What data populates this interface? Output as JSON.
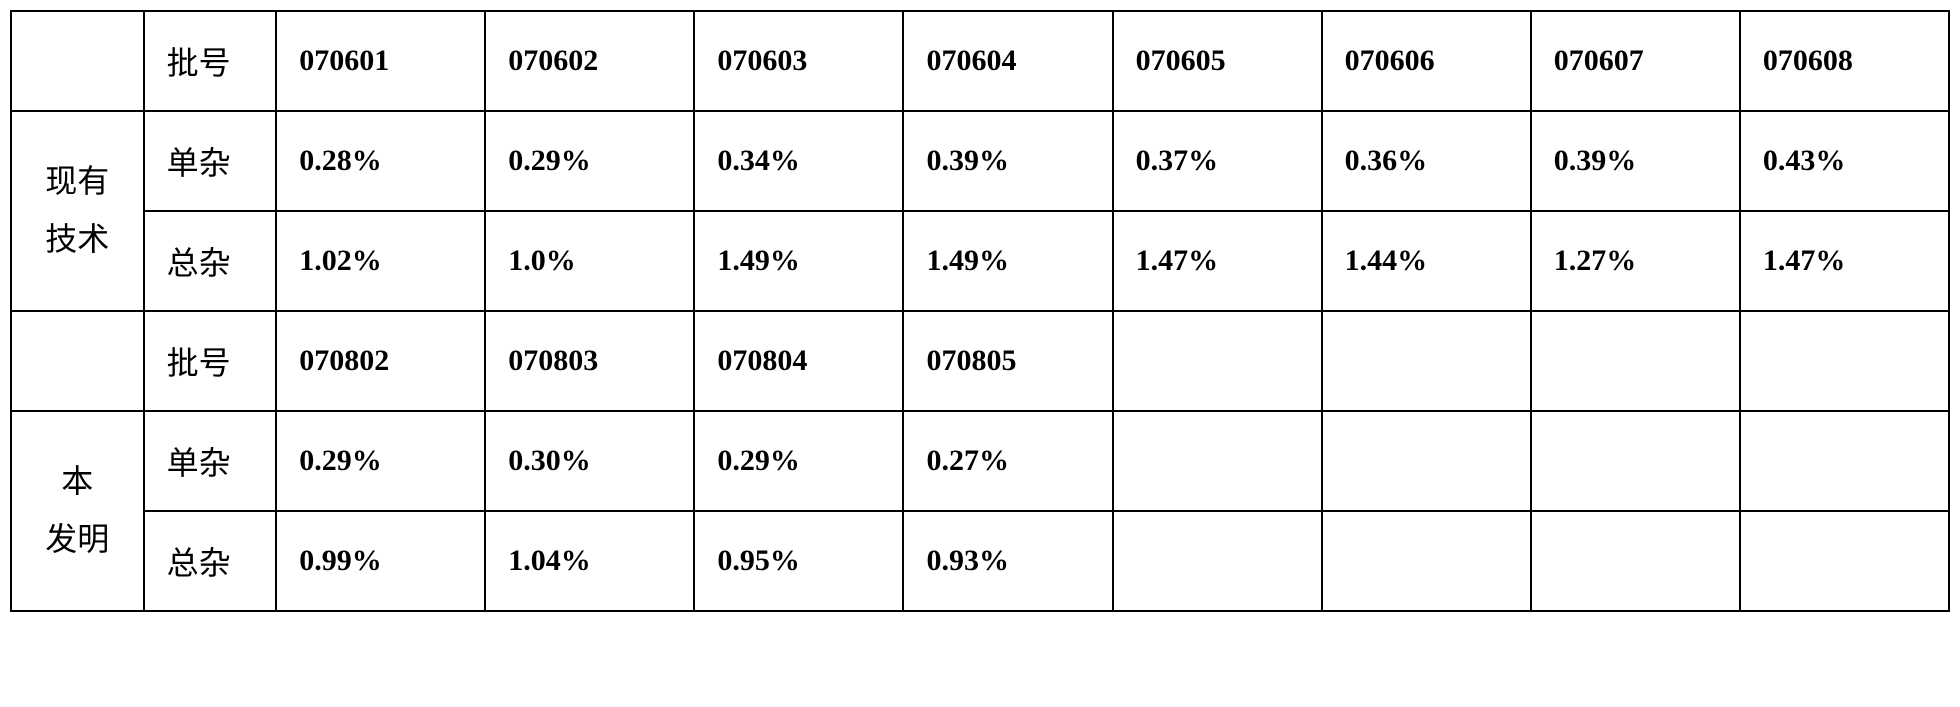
{
  "table": {
    "group1": {
      "label": "现有\n技术",
      "header_row": {
        "label": "批号",
        "values": [
          "070601",
          "070602",
          "070603",
          "070604",
          "070605",
          "070606",
          "070607",
          "070608"
        ]
      },
      "rows": [
        {
          "label": "单杂",
          "values": [
            "0.28%",
            "0.29%",
            "0.34%",
            "0.39%",
            "0.37%",
            "0.36%",
            "0.39%",
            "0.43%"
          ]
        },
        {
          "label": "总杂",
          "values": [
            "1.02%",
            "1.0%",
            "1.49%",
            "1.49%",
            "1.47%",
            "1.44%",
            "1.27%",
            "1.47%"
          ]
        }
      ]
    },
    "group2": {
      "label": "本\n发明",
      "header_row": {
        "label": "批号",
        "values": [
          "070802",
          "070803",
          "070804",
          "070805",
          "",
          "",
          "",
          ""
        ]
      },
      "rows": [
        {
          "label": "单杂",
          "values": [
            "0.29%",
            "0.30%",
            "0.29%",
            "0.27%",
            "",
            "",
            "",
            ""
          ]
        },
        {
          "label": "总杂",
          "values": [
            "0.99%",
            "1.04%",
            "0.95%",
            "0.93%",
            "",
            "",
            "",
            ""
          ]
        }
      ]
    }
  },
  "colors": {
    "border": "#000000",
    "background": "#ffffff",
    "text": "#000000"
  }
}
